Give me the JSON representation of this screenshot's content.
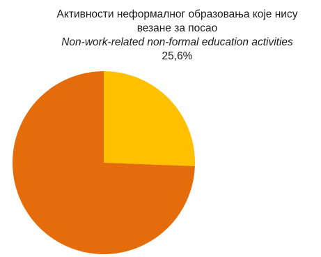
{
  "chart_data": {
    "type": "pie",
    "slices": [
      {
        "value": 25.6,
        "color": "#FFC000"
      },
      {
        "value": 74.4,
        "color": "#E46C0A"
      }
    ],
    "annotation": {
      "line1": "Активности неформалног образовања које нису",
      "line2": "везане за посао",
      "line3": "Non-work-related non-formal education activities",
      "value_label": "25,6%"
    }
  }
}
